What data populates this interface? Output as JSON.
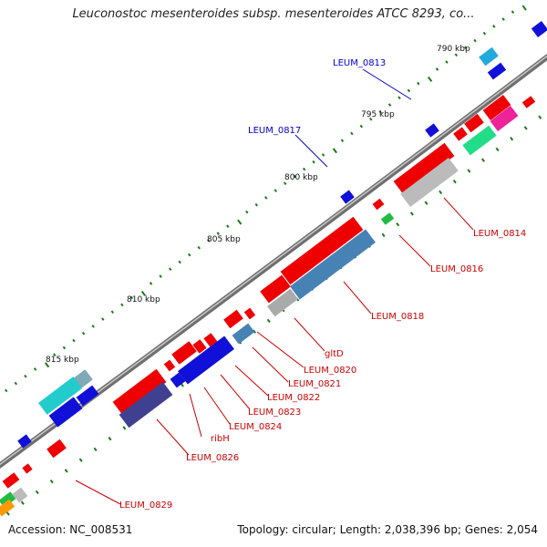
{
  "title": "Leuconostoc mesenteroides subsp. mesenteroides ATCC 8293, co...",
  "footer": {
    "accession_label": "Accession:",
    "accession": "NC_008531",
    "info": "Topology: circular; Length: 2,038,396 bp; Genes: 2,054"
  },
  "scale_labels": [
    "790 kbp",
    "795 kbp",
    "800 kbp",
    "805 kbp",
    "810 kbp",
    "815 kbp"
  ],
  "gene_labels": [
    {
      "text": "LEUM_0813",
      "color": "#0000cc"
    },
    {
      "text": "LEUM_0817",
      "color": "#0000cc"
    },
    {
      "text": "LEUM_0814",
      "color": "#cc0000"
    },
    {
      "text": "LEUM_0816",
      "color": "#cc0000"
    },
    {
      "text": "LEUM_0818",
      "color": "#cc0000"
    },
    {
      "text": "gltD",
      "color": "#cc0000"
    },
    {
      "text": "LEUM_0820",
      "color": "#cc0000"
    },
    {
      "text": "LEUM_0821",
      "color": "#cc0000"
    },
    {
      "text": "LEUM_0822",
      "color": "#cc0000"
    },
    {
      "text": "LEUM_0823",
      "color": "#cc0000"
    },
    {
      "text": "LEUM_0824",
      "color": "#cc0000"
    },
    {
      "text": "ribH",
      "color": "#cc0000"
    },
    {
      "text": "LEUM_0826",
      "color": "#cc0000"
    },
    {
      "text": "LEUM_0829",
      "color": "#cc0000"
    }
  ],
  "colors": {
    "backbone": "#7f7f7f",
    "tick": "#1a7a1a",
    "forward": "#ee0000",
    "reverse": "#0a0ae0"
  }
}
